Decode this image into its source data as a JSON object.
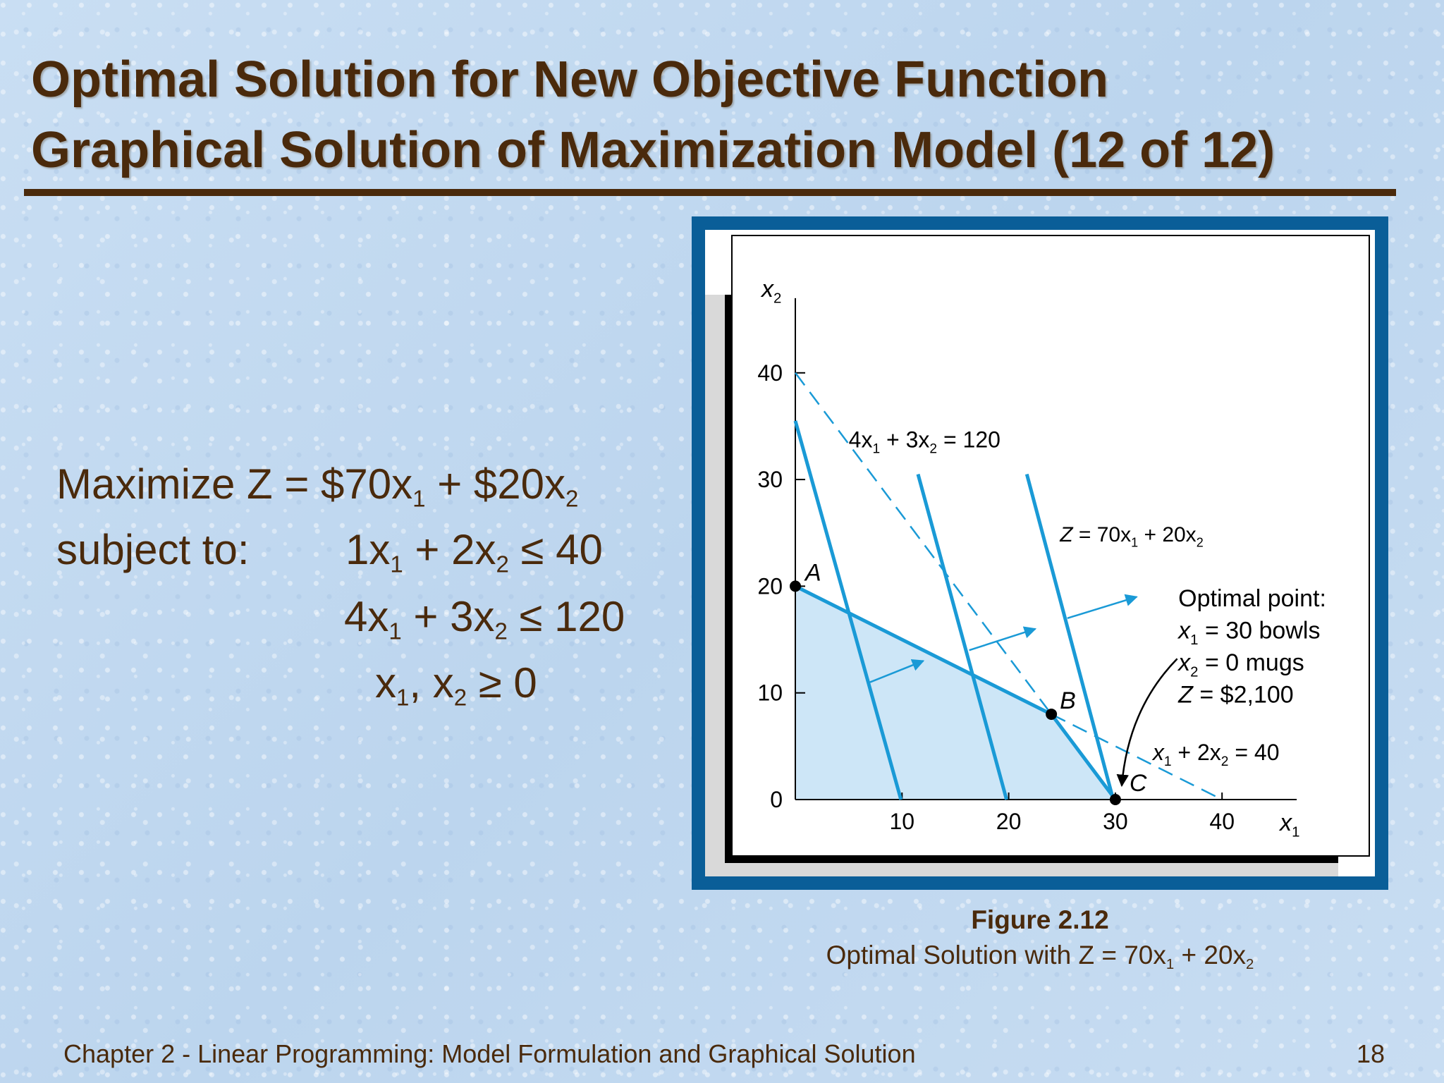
{
  "slide": {
    "title_line1": "Optimal Solution for New Objective Function",
    "title_line2": "Graphical Solution of Maximization Model (12 of 12)",
    "footer_left": "Chapter 2 - Linear Programming:  Model Formulation and Graphical Solution",
    "page_number": "18",
    "title_color": "#4a2a0c",
    "frame_color": "#0a5e98"
  },
  "model": {
    "maximize_prefix": "Maximize Z = $70x",
    "objective_middle": " + $20x",
    "subject_to": "subject to:",
    "c1_a": "1x",
    "c1_b": " + 2x",
    "c1_rhs": " ≤ 40",
    "c2_a": "4x",
    "c2_b": " + 3x",
    "c2_rhs": " ≤ 120",
    "nn_a": "x",
    "nn_b": ", x",
    "nn_rhs": " ≥ 0",
    "sub1": "1",
    "sub2": "2"
  },
  "figure": {
    "label": "Figure 2.12",
    "caption_prefix": "Optimal Solution with Z = 70x",
    "caption_middle": " + 20x",
    "caption_sub1": "1",
    "caption_sub2": "2"
  },
  "chart_data": {
    "type": "line",
    "xlabel": "x",
    "xlabel_sub": "1",
    "ylabel": "x",
    "ylabel_sub": "2",
    "xlim": [
      0,
      47
    ],
    "ylim": [
      0,
      47
    ],
    "x_ticks": [
      10,
      20,
      30,
      40
    ],
    "y_ticks": [
      0,
      10,
      20,
      30,
      40
    ],
    "feasible_region": [
      [
        0,
        0
      ],
      [
        0,
        20
      ],
      [
        24,
        8
      ],
      [
        30,
        0
      ]
    ],
    "constraint_lines": [
      {
        "name": "x1 + 2x2 = 40",
        "points": [
          [
            0,
            20
          ],
          [
            24,
            8
          ],
          [
            30,
            5
          ]
        ],
        "style": "solid-then-dashed",
        "solid_segment": [
          [
            0,
            20
          ],
          [
            24,
            8
          ]
        ],
        "dashed_segment": [
          [
            24,
            8
          ],
          [
            40,
            0
          ]
        ]
      },
      {
        "name": "4x1 + 3x2 = 120",
        "style": "dashed",
        "points": [
          [
            0,
            40
          ],
          [
            30,
            0
          ]
        ]
      }
    ],
    "objective_lines": [
      {
        "points": [
          [
            0,
            35.5
          ],
          [
            9.9,
            0
          ]
        ]
      },
      {
        "points": [
          [
            11.5,
            30.5
          ],
          [
            19.8,
            0
          ]
        ]
      },
      {
        "points": [
          [
            21.7,
            30.5
          ],
          [
            29.8,
            0
          ]
        ]
      }
    ],
    "direction_arrows": [
      {
        "from": [
          7,
          11
        ],
        "to": [
          12,
          13
        ]
      },
      {
        "from": [
          16.3,
          14
        ],
        "to": [
          22.5,
          16
        ]
      },
      {
        "from": [
          25.5,
          17
        ],
        "to": [
          32,
          19
        ]
      }
    ],
    "points": [
      {
        "label": "A",
        "x": 0,
        "y": 20
      },
      {
        "label": "B",
        "x": 24,
        "y": 8
      },
      {
        "label": "C",
        "x": 30,
        "y": 0
      }
    ],
    "annotations": {
      "line_4x1_3x2": {
        "p1": "4x",
        "s1": "1",
        "p2": " + 3x",
        "s2": "2",
        "p3": " = 120"
      },
      "line_z": {
        "p1": "Z",
        "p2": " = 70x",
        "s1": "1",
        "p3": " + 20x",
        "s2": "2"
      },
      "line_x1_2x2": {
        "p1": "x",
        "s1": "1",
        "p2": " + 2x",
        "s2": "2",
        "p3": " = 40"
      },
      "optimal_title": "Optimal point:",
      "optimal_x1": {
        "v": "x",
        "s": "1",
        "rest": " = 30 bowls"
      },
      "optimal_x2": {
        "v": "x",
        "s": "2",
        "rest": " = 0 mugs"
      },
      "optimal_z": {
        "v": "Z",
        "rest": " = $2,100"
      }
    },
    "colors": {
      "line": "#1a9ad6",
      "feasible_fill": "#cde6f7",
      "axis": "#000000",
      "point": "#000000"
    }
  }
}
